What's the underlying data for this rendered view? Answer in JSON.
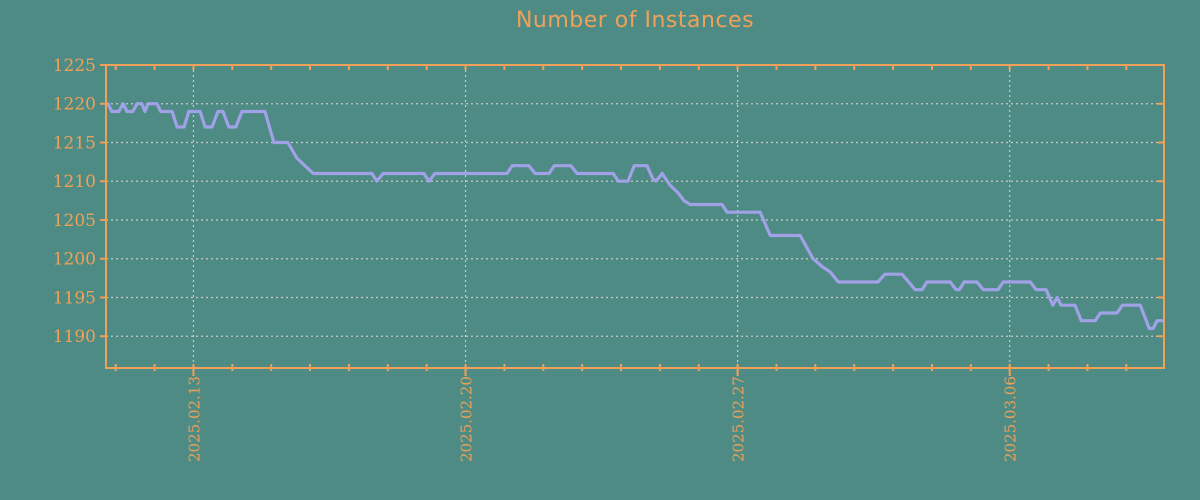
{
  "title": "Number of Instances",
  "colors": {
    "background": "#4e8b84",
    "accent_orange": "#efa158",
    "line_purple": "#a1a1e8",
    "grid_gray": "#c6cbc5"
  },
  "chart_data": {
    "type": "line",
    "title": "Number of Instances",
    "xlabel": "",
    "ylabel": "",
    "x_unit": "days relative to 2025.02.13",
    "xlim": [
      -2.25,
      24.97
    ],
    "ylim": [
      1185.9,
      1225
    ],
    "grid": true,
    "legend": null,
    "y_ticks": [
      1190,
      1195,
      1200,
      1205,
      1210,
      1215,
      1220,
      1225
    ],
    "x_major_ticks": [
      {
        "d": 0,
        "label": "2025.02.13"
      },
      {
        "d": 7,
        "label": "2025.02.20"
      },
      {
        "d": 14,
        "label": "2025.02.27"
      },
      {
        "d": 21,
        "label": "2025.03.06"
      }
    ],
    "x_minor_step_days": 1,
    "series": [
      {
        "name": "instances",
        "color": "#a1a1e8",
        "points": [
          [
            -2.25,
            1220
          ],
          [
            -2.2,
            1220
          ],
          [
            -2.1,
            1219
          ],
          [
            -1.92,
            1219
          ],
          [
            -1.81,
            1220
          ],
          [
            -1.71,
            1219
          ],
          [
            -1.56,
            1219
          ],
          [
            -1.45,
            1220
          ],
          [
            -1.33,
            1220
          ],
          [
            -1.25,
            1219
          ],
          [
            -1.17,
            1220
          ],
          [
            -0.94,
            1220
          ],
          [
            -0.84,
            1219
          ],
          [
            -0.55,
            1219
          ],
          [
            -0.42,
            1217
          ],
          [
            -0.24,
            1217
          ],
          [
            -0.12,
            1219
          ],
          [
            0.17,
            1219
          ],
          [
            0.3,
            1217
          ],
          [
            0.48,
            1217
          ],
          [
            0.63,
            1219
          ],
          [
            0.76,
            1219
          ],
          [
            0.91,
            1217
          ],
          [
            1.09,
            1217
          ],
          [
            1.25,
            1219
          ],
          [
            1.84,
            1219
          ],
          [
            2.07,
            1215
          ],
          [
            2.43,
            1215
          ],
          [
            2.66,
            1213
          ],
          [
            2.87,
            1212
          ],
          [
            3.08,
            1211
          ],
          [
            4.59,
            1211
          ],
          [
            4.72,
            1210
          ],
          [
            4.88,
            1211
          ],
          [
            5.93,
            1211
          ],
          [
            6.06,
            1210
          ],
          [
            6.21,
            1211
          ],
          [
            8.07,
            1211
          ],
          [
            8.2,
            1212
          ],
          [
            8.63,
            1212
          ],
          [
            8.79,
            1211
          ],
          [
            9.15,
            1211
          ],
          [
            9.28,
            1212
          ],
          [
            9.71,
            1212
          ],
          [
            9.87,
            1211
          ],
          [
            10.8,
            1211
          ],
          [
            10.93,
            1210
          ],
          [
            11.18,
            1210
          ],
          [
            11.34,
            1212
          ],
          [
            11.67,
            1212
          ],
          [
            11.82,
            1210.3
          ],
          [
            11.9,
            1210
          ],
          [
            12.06,
            1211
          ],
          [
            12.26,
            1209.5
          ],
          [
            12.47,
            1208.5
          ],
          [
            12.62,
            1207.5
          ],
          [
            12.78,
            1207
          ],
          [
            13.6,
            1207
          ],
          [
            13.73,
            1206
          ],
          [
            14.58,
            1206
          ],
          [
            14.84,
            1203
          ],
          [
            15.61,
            1203
          ],
          [
            15.94,
            1200
          ],
          [
            16.17,
            1199
          ],
          [
            16.38,
            1198.3
          ],
          [
            16.59,
            1197
          ],
          [
            17.61,
            1197
          ],
          [
            17.79,
            1198
          ],
          [
            18.23,
            1198
          ],
          [
            18.57,
            1196
          ],
          [
            18.75,
            1196
          ],
          [
            18.87,
            1197
          ],
          [
            19.47,
            1197
          ],
          [
            19.62,
            1196
          ],
          [
            19.7,
            1196
          ],
          [
            19.83,
            1197
          ],
          [
            20.16,
            1197
          ],
          [
            20.32,
            1196
          ],
          [
            20.7,
            1196
          ],
          [
            20.83,
            1197
          ],
          [
            21.53,
            1197
          ],
          [
            21.68,
            1196
          ],
          [
            21.94,
            1196
          ],
          [
            22.11,
            1194
          ],
          [
            22.22,
            1195
          ],
          [
            22.32,
            1194
          ],
          [
            22.68,
            1194
          ],
          [
            22.84,
            1192
          ],
          [
            23.2,
            1192
          ],
          [
            23.33,
            1193
          ],
          [
            23.76,
            1193
          ],
          [
            23.9,
            1194
          ],
          [
            24.36,
            1194
          ],
          [
            24.59,
            1191
          ],
          [
            24.69,
            1191
          ],
          [
            24.79,
            1192
          ],
          [
            24.97,
            1192
          ]
        ]
      }
    ]
  }
}
